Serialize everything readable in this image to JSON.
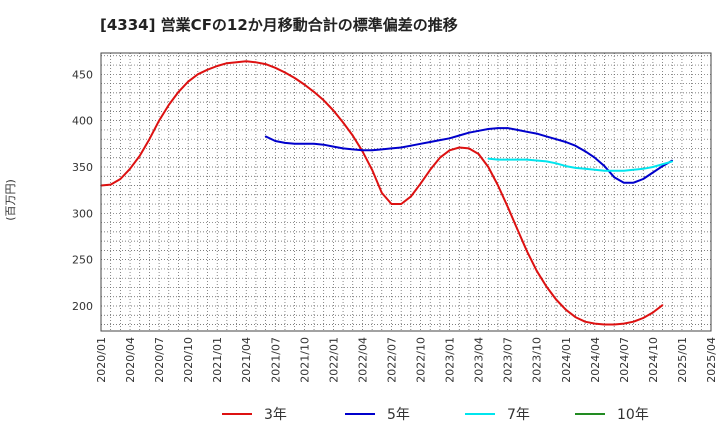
{
  "chart_data": {
    "type": "line",
    "title": "[4334]  営業CFの12か月移動合計の標準偏差の推移",
    "ylabel": "(百万円)",
    "xlabel": "",
    "ylim": [
      173,
      473
    ],
    "yticks": [
      200,
      250,
      300,
      350,
      400,
      450
    ],
    "xlim": [
      "2020-01",
      "2025-04"
    ],
    "xticks": [
      "2020/01",
      "2020/04",
      "2020/07",
      "2020/10",
      "2021/01",
      "2021/04",
      "2021/07",
      "2021/10",
      "2022/01",
      "2022/04",
      "2022/07",
      "2022/10",
      "2023/01",
      "2023/04",
      "2023/07",
      "2023/10",
      "2024/01",
      "2024/04",
      "2024/07",
      "2024/10",
      "2025/01",
      "2025/04"
    ],
    "grid": true,
    "legend_position": "bottom",
    "series": [
      {
        "name": "3年",
        "color": "#dd1111",
        "points": [
          [
            "2020-01",
            330
          ],
          [
            "2020-02",
            331
          ],
          [
            "2020-03",
            337
          ],
          [
            "2020-04",
            348
          ],
          [
            "2020-05",
            362
          ],
          [
            "2020-06",
            380
          ],
          [
            "2020-07",
            400
          ],
          [
            "2020-08",
            417
          ],
          [
            "2020-09",
            431
          ],
          [
            "2020-10",
            442
          ],
          [
            "2020-11",
            450
          ],
          [
            "2020-12",
            455
          ],
          [
            "2021-01",
            459
          ],
          [
            "2021-02",
            462
          ],
          [
            "2021-03",
            463
          ],
          [
            "2021-04",
            464
          ],
          [
            "2021-05",
            463
          ],
          [
            "2021-06",
            461
          ],
          [
            "2021-07",
            457
          ],
          [
            "2021-08",
            452
          ],
          [
            "2021-09",
            446
          ],
          [
            "2021-10",
            439
          ],
          [
            "2021-11",
            431
          ],
          [
            "2021-12",
            422
          ],
          [
            "2022-01",
            411
          ],
          [
            "2022-02",
            398
          ],
          [
            "2022-03",
            384
          ],
          [
            "2022-04",
            367
          ],
          [
            "2022-05",
            347
          ],
          [
            "2022-06",
            322
          ],
          [
            "2022-07",
            310
          ],
          [
            "2022-08",
            310
          ],
          [
            "2022-09",
            318
          ],
          [
            "2022-10",
            332
          ],
          [
            "2022-11",
            347
          ],
          [
            "2022-12",
            360
          ],
          [
            "2023-01",
            368
          ],
          [
            "2023-02",
            371
          ],
          [
            "2023-03",
            370
          ],
          [
            "2023-04",
            364
          ],
          [
            "2023-05",
            350
          ],
          [
            "2023-06",
            330
          ],
          [
            "2023-07",
            307
          ],
          [
            "2023-08",
            283
          ],
          [
            "2023-09",
            259
          ],
          [
            "2023-10",
            238
          ],
          [
            "2023-11",
            221
          ],
          [
            "2023-12",
            207
          ],
          [
            "2024-01",
            196
          ],
          [
            "2024-02",
            188
          ],
          [
            "2024-03",
            183
          ],
          [
            "2024-04",
            181
          ],
          [
            "2024-05",
            180
          ],
          [
            "2024-06",
            180
          ],
          [
            "2024-07",
            181
          ],
          [
            "2024-08",
            183
          ],
          [
            "2024-09",
            187
          ],
          [
            "2024-10",
            193
          ],
          [
            "2024-11",
            201
          ]
        ]
      },
      {
        "name": "5年",
        "color": "#0000cc",
        "points": [
          [
            "2021-06",
            383
          ],
          [
            "2021-07",
            378
          ],
          [
            "2021-08",
            376
          ],
          [
            "2021-09",
            375
          ],
          [
            "2021-10",
            375
          ],
          [
            "2021-11",
            375
          ],
          [
            "2021-12",
            374
          ],
          [
            "2022-01",
            372
          ],
          [
            "2022-02",
            370
          ],
          [
            "2022-03",
            369
          ],
          [
            "2022-04",
            368
          ],
          [
            "2022-05",
            368
          ],
          [
            "2022-06",
            369
          ],
          [
            "2022-07",
            370
          ],
          [
            "2022-08",
            371
          ],
          [
            "2022-09",
            373
          ],
          [
            "2022-10",
            375
          ],
          [
            "2022-11",
            377
          ],
          [
            "2022-12",
            379
          ],
          [
            "2023-01",
            381
          ],
          [
            "2023-02",
            384
          ],
          [
            "2023-03",
            387
          ],
          [
            "2023-04",
            389
          ],
          [
            "2023-05",
            391
          ],
          [
            "2023-06",
            392
          ],
          [
            "2023-07",
            392
          ],
          [
            "2023-08",
            390
          ],
          [
            "2023-09",
            388
          ],
          [
            "2023-10",
            386
          ],
          [
            "2023-11",
            383
          ],
          [
            "2023-12",
            380
          ],
          [
            "2024-01",
            377
          ],
          [
            "2024-02",
            373
          ],
          [
            "2024-03",
            367
          ],
          [
            "2024-04",
            360
          ],
          [
            "2024-05",
            351
          ],
          [
            "2024-06",
            339
          ],
          [
            "2024-07",
            333
          ],
          [
            "2024-08",
            333
          ],
          [
            "2024-09",
            337
          ],
          [
            "2024-10",
            344
          ],
          [
            "2024-11",
            351
          ],
          [
            "2024-12",
            357
          ]
        ]
      },
      {
        "name": "7年",
        "color": "#00e5ee",
        "points": [
          [
            "2023-05",
            359
          ],
          [
            "2023-06",
            358
          ],
          [
            "2023-07",
            358
          ],
          [
            "2023-08",
            358
          ],
          [
            "2023-09",
            358
          ],
          [
            "2023-10",
            357
          ],
          [
            "2023-11",
            356
          ],
          [
            "2023-12",
            354
          ],
          [
            "2024-01",
            351
          ],
          [
            "2024-02",
            349
          ],
          [
            "2024-03",
            348
          ],
          [
            "2024-04",
            347
          ],
          [
            "2024-05",
            346
          ],
          [
            "2024-06",
            346
          ],
          [
            "2024-07",
            346
          ],
          [
            "2024-08",
            347
          ],
          [
            "2024-09",
            348
          ],
          [
            "2024-10",
            350
          ],
          [
            "2024-11",
            353
          ],
          [
            "2024-12",
            356
          ]
        ]
      },
      {
        "name": "10年",
        "color": "#228b22",
        "points": []
      }
    ]
  }
}
